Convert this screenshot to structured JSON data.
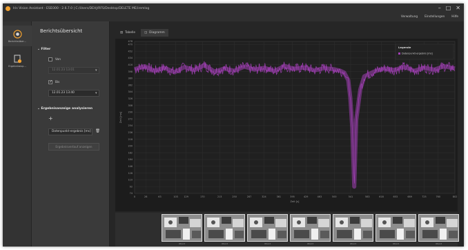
{
  "window": {
    "title": "Iris Vision Assistant - ESD300 - 2.6.7.0 | C:/Users/DEHJ/RFS/Desktop/DELETE ME/iremlog"
  },
  "menu": {
    "items": [
      "Verwaltung",
      "Einstellungen",
      "Hilfe"
    ]
  },
  "rail": {
    "items": [
      {
        "label": "Berichtsüber...",
        "icon": "report-overview-icon"
      },
      {
        "label": "Ergebnisexp...",
        "icon": "result-export-icon"
      }
    ]
  },
  "panel": {
    "title": "Berichtsübersicht",
    "filter_title": "Filter",
    "from_label": "Von",
    "from_value": "12.01.23 13:01",
    "to_label": "Bis",
    "to_value": "12.01.23 13:40",
    "analysis_title": "Ergebnisanzeige analysieren",
    "metric_value": "Datenpunkt-ergebnis [ms]",
    "show_button": "Ergebnisverlauf anzeigen"
  },
  "tabs": [
    {
      "label": "Tabelle",
      "icon": "table-icon",
      "active": false
    },
    {
      "label": "Diagramm",
      "icon": "chart-icon",
      "active": true
    }
  ],
  "legend": {
    "title": "Legende",
    "entry": "Datenpunkt-ergebnis [ms]"
  },
  "thumbnails": {
    "captions": [
      "IMG03",
      "IMG03",
      "IMG03",
      "IMG03",
      "IMG03",
      "IMG03",
      "IMG03"
    ]
  },
  "colors": {
    "series": "#a23fb6",
    "plot_background": "#1c1c1c",
    "accent": "#f0a030"
  },
  "chart_data": {
    "type": "line",
    "ylabel": "Zeit [ms]",
    "xlabel": "Zeit [s]",
    "ylim": [
      74,
      478
    ],
    "yticks": [
      74,
      92,
      110,
      128,
      146,
      164,
      182,
      200,
      218,
      236,
      254,
      272,
      290,
      308,
      326,
      344,
      362,
      380,
      398,
      416,
      434,
      452,
      470,
      478
    ],
    "xlim": [
      0,
      802
    ],
    "xticks": [
      0,
      28,
      63,
      103,
      129,
      170,
      213,
      250,
      287,
      324,
      361,
      395,
      429,
      463,
      500,
      541,
      583,
      618,
      653,
      689,
      725,
      760,
      802
    ],
    "grid": true,
    "legend_position": "top-right",
    "series": [
      {
        "name": "Datenpunkt-ergebnis [ms]",
        "x": [
          0,
          25,
          50,
          75,
          100,
          125,
          150,
          175,
          200,
          225,
          250,
          275,
          300,
          325,
          350,
          375,
          400,
          425,
          450,
          475,
          500,
          515,
          525,
          535,
          540,
          545,
          550,
          555,
          565,
          575,
          600,
          625,
          650,
          675,
          700,
          725,
          750,
          775,
          802
        ],
        "y": [
          404,
          412,
          400,
          408,
          396,
          410,
          402,
          415,
          398,
          406,
          400,
          411,
          403,
          408,
          399,
          413,
          405,
          409,
          401,
          407,
          404,
          400,
          395,
          375,
          330,
          250,
          92,
          270,
          350,
          385,
          398,
          406,
          402,
          410,
          400,
          408,
          403,
          412,
          406
        ]
      }
    ]
  }
}
